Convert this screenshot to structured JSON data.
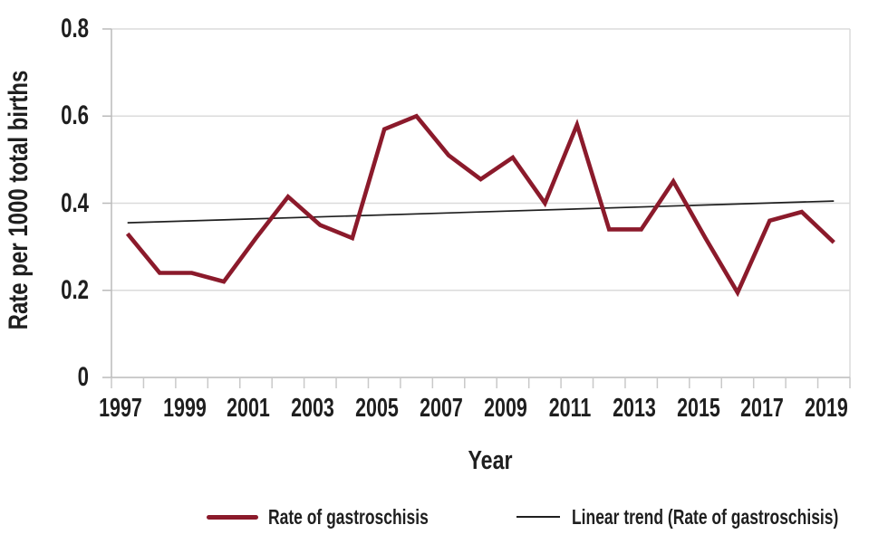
{
  "figure": {
    "y_axis_title": "Rate per 1000 total births",
    "x_axis_title": "Year"
  },
  "legend": {
    "series1_label": "Rate of gastroschisis",
    "series2_label": "Linear trend (Rate of gastroschisis)"
  },
  "colors": {
    "series_line": "#8B1A2B",
    "trend_line": "#1F1F1F",
    "gridline": "#DBDBDB",
    "axis_line": "#BBBBBB",
    "tick_mark": "#C9C9C9",
    "text": "#1F1F1F"
  },
  "chart_data": {
    "type": "line",
    "title": "",
    "xlabel": "Year",
    "ylabel": "Rate per 1000 total births",
    "x": [
      1997,
      1998,
      1999,
      2000,
      2001,
      2002,
      2003,
      2004,
      2005,
      2006,
      2007,
      2008,
      2009,
      2010,
      2011,
      2012,
      2013,
      2014,
      2015,
      2016,
      2017,
      2018,
      2019
    ],
    "series": [
      {
        "name": "Rate of gastroschisis",
        "values": [
          0.33,
          0.24,
          0.24,
          0.22,
          0.32,
          0.415,
          0.35,
          0.32,
          0.57,
          0.6,
          0.51,
          0.455,
          0.505,
          0.4,
          0.58,
          0.34,
          0.34,
          0.45,
          0.32,
          0.195,
          0.36,
          0.38,
          0.31
        ]
      },
      {
        "name": "Linear trend (Rate of gastroschisis)",
        "trend_start": 0.355,
        "trend_end": 0.405
      }
    ],
    "ylim": [
      0,
      0.8
    ],
    "y_ticks": [
      0,
      0.2,
      0.4,
      0.6,
      0.8
    ],
    "y_tick_labels": [
      "0",
      "0.2",
      "0.4",
      "0.6",
      "0.8"
    ],
    "x_tick_labels": [
      "1997",
      "1999",
      "2001",
      "2003",
      "2005",
      "2007",
      "2009",
      "2011",
      "2013",
      "2015",
      "2017",
      "2019"
    ],
    "grid": "horizontal",
    "legend_position": "bottom"
  }
}
